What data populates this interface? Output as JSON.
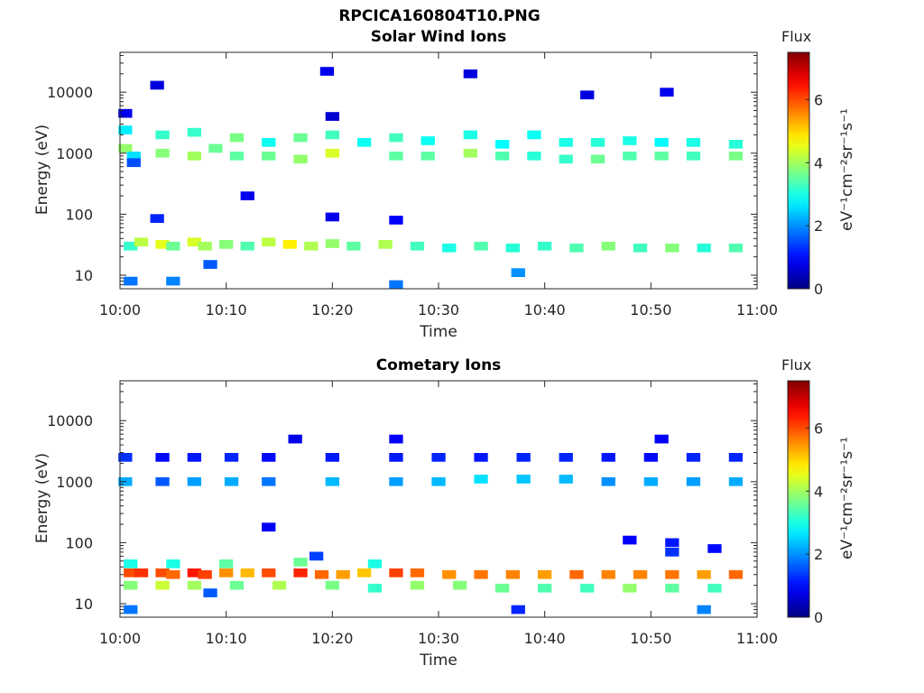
{
  "figure_title": "RPCICA160804T10.PNG",
  "chart_data": [
    {
      "type": "heatmap",
      "title": "Solar Wind Ions",
      "xlabel": "Time",
      "ylabel": "Energy (eV)",
      "x_ticks": [
        "10:00",
        "10:10",
        "10:20",
        "10:30",
        "10:40",
        "10:50",
        "11:00"
      ],
      "xlim_minutes": [
        0,
        60
      ],
      "y_scale": "log",
      "y_ticks": [
        "10",
        "100",
        "1000",
        "10000"
      ],
      "ylim": [
        6,
        45000
      ],
      "grid": false,
      "colorbar": {
        "title": "Flux",
        "label": "eV⁻¹cm⁻²sr⁻¹s⁻¹",
        "ticks": [
          "0",
          "2",
          "4",
          "6"
        ],
        "range": [
          0,
          7.5
        ],
        "colormap": "jet"
      },
      "cells": [
        [
          1,
          30,
          3.2
        ],
        [
          2,
          35,
          4.2
        ],
        [
          4,
          32,
          4.5
        ],
        [
          5,
          30,
          3.6
        ],
        [
          7,
          35,
          4.4
        ],
        [
          8,
          30,
          4.0
        ],
        [
          10,
          32,
          3.8
        ],
        [
          12,
          30,
          3.4
        ],
        [
          14,
          35,
          4.2
        ],
        [
          16,
          32,
          4.8
        ],
        [
          18,
          30,
          4.1
        ],
        [
          20,
          33,
          3.9
        ],
        [
          22,
          30,
          3.5
        ],
        [
          25,
          32,
          4.1
        ],
        [
          28,
          30,
          3.3
        ],
        [
          31,
          28,
          3.0
        ],
        [
          34,
          30,
          3.4
        ],
        [
          37,
          28,
          3.1
        ],
        [
          40,
          30,
          3.2
        ],
        [
          43,
          28,
          3.4
        ],
        [
          46,
          30,
          3.8
        ],
        [
          49,
          28,
          3.3
        ],
        [
          52,
          28,
          3.8
        ],
        [
          55,
          28,
          3.1
        ],
        [
          58,
          28,
          3.4
        ],
        [
          1,
          8,
          1.8
        ],
        [
          5,
          8,
          1.9
        ],
        [
          8.5,
          15,
          1.6
        ],
        [
          26,
          7,
          1.8
        ],
        [
          37.5,
          11,
          2.0
        ],
        [
          0.5,
          2400,
          2.7
        ],
        [
          0.5,
          1200,
          3.9
        ],
        [
          1.3,
          900,
          2.6
        ],
        [
          1.3,
          700,
          1.5
        ],
        [
          4,
          2000,
          3.2
        ],
        [
          4,
          1000,
          3.8
        ],
        [
          7,
          2200,
          3.2
        ],
        [
          7,
          900,
          4.0
        ],
        [
          9,
          1200,
          3.6
        ],
        [
          11,
          1800,
          3.7
        ],
        [
          11,
          900,
          3.5
        ],
        [
          14,
          1500,
          2.9
        ],
        [
          14,
          900,
          3.6
        ],
        [
          17,
          1800,
          3.6
        ],
        [
          17,
          800,
          3.9
        ],
        [
          20,
          2000,
          3.3
        ],
        [
          20,
          1000,
          4.4
        ],
        [
          23,
          1500,
          2.9
        ],
        [
          26,
          1800,
          3.3
        ],
        [
          26,
          900,
          3.5
        ],
        [
          29,
          1600,
          2.9
        ],
        [
          29,
          900,
          3.5
        ],
        [
          33,
          2000,
          3.0
        ],
        [
          33,
          1000,
          4.0
        ],
        [
          36,
          1400,
          2.8
        ],
        [
          36,
          900,
          3.4
        ],
        [
          39,
          2000,
          2.9
        ],
        [
          39,
          900,
          3.1
        ],
        [
          42,
          1500,
          3.0
        ],
        [
          42,
          800,
          3.2
        ],
        [
          45,
          1500,
          3.1
        ],
        [
          45,
          800,
          3.6
        ],
        [
          48,
          1600,
          3.0
        ],
        [
          48,
          900,
          3.4
        ],
        [
          51,
          1500,
          2.8
        ],
        [
          51,
          900,
          3.5
        ],
        [
          54,
          1500,
          3.0
        ],
        [
          54,
          900,
          3.3
        ],
        [
          58,
          1400,
          3.1
        ],
        [
          58,
          900,
          3.7
        ],
        [
          0.5,
          4500,
          0.8
        ],
        [
          3.5,
          13000,
          0.7
        ],
        [
          20,
          4000,
          0.6
        ],
        [
          19.5,
          22000,
          0.8
        ],
        [
          33,
          20000,
          0.7
        ],
        [
          51.5,
          10000,
          0.8
        ],
        [
          44,
          9000,
          0.7
        ],
        [
          26,
          80,
          0.9
        ],
        [
          20,
          90,
          0.8
        ],
        [
          3.5,
          85,
          1.2
        ],
        [
          12,
          200,
          0.8
        ]
      ]
    },
    {
      "type": "heatmap",
      "title": "Cometary Ions",
      "xlabel": "Time",
      "ylabel": "Energy (eV)",
      "x_ticks": [
        "10:00",
        "10:10",
        "10:20",
        "10:30",
        "10:40",
        "10:50",
        "11:00"
      ],
      "xlim_minutes": [
        0,
        60
      ],
      "y_scale": "log",
      "y_ticks": [
        "10",
        "100",
        "1000",
        "10000"
      ],
      "ylim": [
        6,
        45000
      ],
      "grid": false,
      "colorbar": {
        "title": "Flux",
        "label": "eV⁻¹cm⁻²sr⁻¹s⁻¹",
        "ticks": [
          "0",
          "2",
          "4",
          "6"
        ],
        "range": [
          0,
          7.5
        ],
        "colormap": "jet"
      },
      "cells": [
        [
          1,
          32,
          6.0
        ],
        [
          2,
          32,
          6.2
        ],
        [
          4,
          32,
          6.0
        ],
        [
          5,
          30,
          5.8
        ],
        [
          7,
          32,
          6.4
        ],
        [
          8,
          30,
          6.1
        ],
        [
          10,
          32,
          5.5
        ],
        [
          12,
          32,
          5.2
        ],
        [
          14,
          32,
          6.0
        ],
        [
          17,
          32,
          6.3
        ],
        [
          19,
          30,
          5.8
        ],
        [
          21,
          30,
          5.4
        ],
        [
          23,
          32,
          5.1
        ],
        [
          26,
          32,
          6.1
        ],
        [
          28,
          32,
          5.8
        ],
        [
          31,
          30,
          5.5
        ],
        [
          34,
          30,
          5.7
        ],
        [
          37,
          30,
          5.6
        ],
        [
          40,
          30,
          5.4
        ],
        [
          43,
          30,
          5.8
        ],
        [
          46,
          30,
          5.6
        ],
        [
          49,
          30,
          5.6
        ],
        [
          52,
          30,
          5.7
        ],
        [
          55,
          30,
          5.4
        ],
        [
          58,
          30,
          5.8
        ],
        [
          1,
          45,
          3.0
        ],
        [
          5,
          45,
          3.0
        ],
        [
          10,
          45,
          3.5
        ],
        [
          17,
          48,
          3.6
        ],
        [
          24,
          45,
          3.0
        ],
        [
          1,
          20,
          3.8
        ],
        [
          4,
          20,
          4.3
        ],
        [
          7,
          20,
          4.0
        ],
        [
          11,
          20,
          3.6
        ],
        [
          15,
          20,
          4.1
        ],
        [
          20,
          20,
          3.7
        ],
        [
          24,
          18,
          3.2
        ],
        [
          28,
          20,
          3.9
        ],
        [
          32,
          20,
          3.8
        ],
        [
          36,
          18,
          3.6
        ],
        [
          40,
          18,
          3.4
        ],
        [
          44,
          18,
          3.3
        ],
        [
          48,
          18,
          3.9
        ],
        [
          52,
          18,
          3.5
        ],
        [
          56,
          18,
          3.3
        ],
        [
          1,
          8,
          1.8
        ],
        [
          37.5,
          8,
          1.2
        ],
        [
          55,
          8,
          1.9
        ],
        [
          8.5,
          15,
          1.6
        ],
        [
          0.5,
          2500,
          1.3
        ],
        [
          0.5,
          1000,
          2.2
        ],
        [
          4,
          2500,
          1.0
        ],
        [
          4,
          1000,
          1.6
        ],
        [
          7,
          2500,
          1.1
        ],
        [
          7,
          1000,
          2.1
        ],
        [
          10.5,
          2500,
          1.2
        ],
        [
          10.5,
          1000,
          2.2
        ],
        [
          14,
          2500,
          1.0
        ],
        [
          14,
          1000,
          1.8
        ],
        [
          20,
          2500,
          1.1
        ],
        [
          20,
          1000,
          2.3
        ],
        [
          26,
          2500,
          1.1
        ],
        [
          26,
          1000,
          2.1
        ],
        [
          30,
          2500,
          1.2
        ],
        [
          30,
          1000,
          2.3
        ],
        [
          34,
          2500,
          1.1
        ],
        [
          34,
          1100,
          2.6
        ],
        [
          38,
          2500,
          1.2
        ],
        [
          38,
          1100,
          2.4
        ],
        [
          42,
          2500,
          1.2
        ],
        [
          42,
          1100,
          2.3
        ],
        [
          46,
          2500,
          1.1
        ],
        [
          46,
          1000,
          2.0
        ],
        [
          50,
          2500,
          1.0
        ],
        [
          50,
          1000,
          2.2
        ],
        [
          54,
          2500,
          1.2
        ],
        [
          54,
          1000,
          2.1
        ],
        [
          58,
          2500,
          1.2
        ],
        [
          58,
          1000,
          2.2
        ],
        [
          16.5,
          5000,
          0.8
        ],
        [
          26,
          5000,
          0.9
        ],
        [
          51,
          5000,
          0.9
        ],
        [
          14,
          180,
          0.9
        ],
        [
          52,
          100,
          1.1
        ],
        [
          52,
          70,
          1.3
        ],
        [
          48,
          110,
          0.9
        ],
        [
          18.5,
          60,
          1.4
        ],
        [
          56,
          80,
          1.0
        ]
      ]
    }
  ]
}
